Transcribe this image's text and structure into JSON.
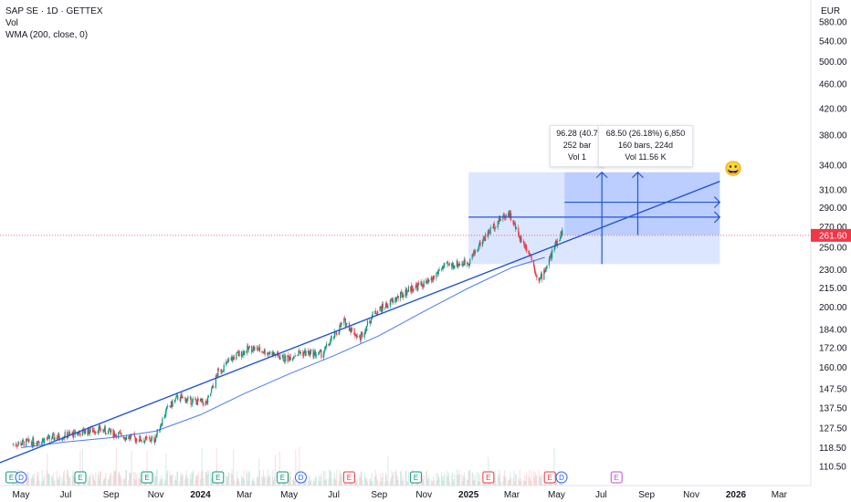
{
  "header": {
    "symbol_line": "SAP SE · 1D · GETTEX",
    "indicator_vol": "Vol",
    "indicator_wma": "WMA (200, close, 0)",
    "currency": "EUR"
  },
  "chart_data": {
    "type": "candlestick",
    "y_scale": "log",
    "y_ticks": [
      110.5,
      118.5,
      127.5,
      137.5,
      147.5,
      160.0,
      172.0,
      184.0,
      200.0,
      215.0,
      230.0,
      250.0,
      270.0,
      290.0,
      310.0,
      340.0,
      380.0,
      420.0,
      460.0,
      500.0,
      540.0,
      580.0
    ],
    "y_tick_labels": [
      "110.50",
      "118.50",
      "127.50",
      "137.50",
      "147.50",
      "160.00",
      "172.00",
      "184.00",
      "200.00",
      "215.00",
      "230.00",
      "250.00",
      "270.00",
      "290.00",
      "310.00",
      "340.00",
      "380.00",
      "420.00",
      "460.00",
      "500.00",
      "540.00",
      "580.00"
    ],
    "x_ticks": [
      "May",
      "Jul",
      "Sep",
      "Nov",
      "2024",
      "Mar",
      "May",
      "Jul",
      "Sep",
      "Nov",
      "2025",
      "Mar",
      "May",
      "Jul",
      "Sep",
      "Nov",
      "2026",
      "Mar"
    ],
    "bold_x_ticks": [
      "2024",
      "2025",
      "2026"
    ],
    "last_price": 261.6,
    "last_price_label": "261.60",
    "last_price_color": "#f23645",
    "candle_up_color": "#089981",
    "candle_down_color": "#f23645",
    "wma_color": "#2962ff",
    "wma_points": [
      {
        "date": "2023-05-01",
        "value": 118.5
      },
      {
        "date": "2023-07-01",
        "value": 121
      },
      {
        "date": "2023-09-01",
        "value": 123
      },
      {
        "date": "2023-11-01",
        "value": 126
      },
      {
        "date": "2024-01-01",
        "value": 134
      },
      {
        "date": "2024-03-01",
        "value": 145
      },
      {
        "date": "2024-05-01",
        "value": 156
      },
      {
        "date": "2024-07-01",
        "value": 167
      },
      {
        "date": "2024-09-01",
        "value": 180
      },
      {
        "date": "2024-11-01",
        "value": 197
      },
      {
        "date": "2025-01-01",
        "value": 215
      },
      {
        "date": "2025-03-01",
        "value": 232
      },
      {
        "date": "2025-04-15",
        "value": 241
      }
    ],
    "price_path": [
      {
        "date": "2023-04-20",
        "close": 120
      },
      {
        "date": "2023-05-15",
        "close": 121
      },
      {
        "date": "2023-06-15",
        "close": 123
      },
      {
        "date": "2023-07-15",
        "close": 125
      },
      {
        "date": "2023-08-15",
        "close": 127
      },
      {
        "date": "2023-09-15",
        "close": 124
      },
      {
        "date": "2023-10-15",
        "close": 122
      },
      {
        "date": "2023-10-30",
        "close": 122
      },
      {
        "date": "2023-11-15",
        "close": 136
      },
      {
        "date": "2023-12-01",
        "close": 143
      },
      {
        "date": "2023-12-20",
        "close": 141
      },
      {
        "date": "2024-01-10",
        "close": 140
      },
      {
        "date": "2024-01-25",
        "close": 157
      },
      {
        "date": "2024-02-15",
        "close": 166
      },
      {
        "date": "2024-03-10",
        "close": 172
      },
      {
        "date": "2024-04-10",
        "close": 168
      },
      {
        "date": "2024-04-25",
        "close": 165
      },
      {
        "date": "2024-05-15",
        "close": 169
      },
      {
        "date": "2024-06-15",
        "close": 168
      },
      {
        "date": "2024-07-15",
        "close": 190
      },
      {
        "date": "2024-08-05",
        "close": 178
      },
      {
        "date": "2024-08-25",
        "close": 196
      },
      {
        "date": "2024-09-15",
        "close": 203
      },
      {
        "date": "2024-10-15",
        "close": 215
      },
      {
        "date": "2024-11-10",
        "close": 220
      },
      {
        "date": "2024-11-25",
        "close": 232
      },
      {
        "date": "2024-12-15",
        "close": 235
      },
      {
        "date": "2025-01-01",
        "close": 237
      },
      {
        "date": "2025-01-20",
        "close": 257
      },
      {
        "date": "2025-02-10",
        "close": 276
      },
      {
        "date": "2025-02-25",
        "close": 285
      },
      {
        "date": "2025-03-10",
        "close": 262
      },
      {
        "date": "2025-03-25",
        "close": 246
      },
      {
        "date": "2025-04-07",
        "close": 220
      },
      {
        "date": "2025-04-18",
        "close": 234
      },
      {
        "date": "2025-04-28",
        "close": 250
      },
      {
        "date": "2025-05-09",
        "close": 266
      }
    ],
    "trendline": {
      "start": {
        "date": "2023-03-20",
        "value": 110.5
      },
      "end": {
        "date": "2025-12-10",
        "value": 320
      }
    },
    "channel_lines": [
      {
        "start": {
          "date": "2025-01-01",
          "value": 280
        },
        "end": {
          "date": "2025-12-10",
          "value": 280
        }
      },
      {
        "start": {
          "date": "2025-05-12",
          "value": 296
        },
        "end": {
          "date": "2025-12-10",
          "value": 296
        }
      }
    ],
    "range_box_1": {
      "from": "2025-01-01",
      "to": "2025-12-10",
      "low": 235,
      "high": 331
    },
    "range_box_2": {
      "from": "2025-05-12",
      "to": "2025-12-10",
      "low": 262,
      "high": 331
    },
    "arrows": [
      {
        "date": "2025-07-02",
        "from": 235,
        "to": 331
      },
      {
        "date": "2025-08-20",
        "from": 262,
        "to": 331
      }
    ],
    "event_markers": [
      {
        "date": "2023-04-18",
        "label": "E",
        "kind": "earnings"
      },
      {
        "date": "2023-05-01",
        "label": "D",
        "kind": "dividend"
      },
      {
        "date": "2023-07-21",
        "label": "E",
        "kind": "earnings"
      },
      {
        "date": "2023-10-20",
        "label": "E",
        "kind": "earnings"
      },
      {
        "date": "2024-01-25",
        "label": "E",
        "kind": "earnings"
      },
      {
        "date": "2024-04-22",
        "label": "E",
        "kind": "earnings"
      },
      {
        "date": "2024-05-17",
        "label": "D",
        "kind": "dividend"
      },
      {
        "date": "2024-07-22",
        "label": "E",
        "kind": "earnings"
      },
      {
        "date": "2024-10-21",
        "label": "E",
        "kind": "earnings"
      },
      {
        "date": "2025-01-28",
        "label": "E",
        "kind": "earnings"
      },
      {
        "date": "2025-04-22",
        "label": "E",
        "kind": "earnings"
      },
      {
        "date": "2025-05-08",
        "label": "D",
        "kind": "dividend"
      },
      {
        "date": "2025-07-22",
        "label": "E",
        "kind": "earnings-upcoming"
      }
    ]
  },
  "measure_tooltip_1": {
    "line1": "96.28 (40.7",
    "line2": "252 bar",
    "line3": "Vol 1"
  },
  "measure_tooltip_2": {
    "line1": "68.50 (26.18%) 6,850",
    "line2": "160 bars, 224d",
    "line3": "Vol 11.56 K"
  },
  "annotation": {
    "emoji": "😀"
  }
}
